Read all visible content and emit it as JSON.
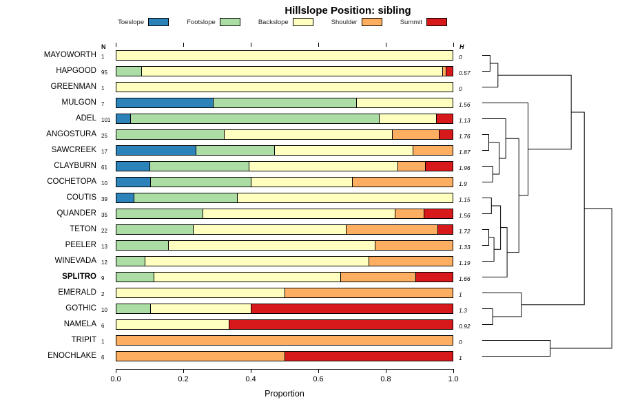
{
  "title": "Hillslope Position: sibling",
  "legend": {
    "items": [
      {
        "label": "Toeslope",
        "color": "#2b83ba"
      },
      {
        "label": "Footslope",
        "color": "#abdda4"
      },
      {
        "label": "Backslope",
        "color": "#ffffbf"
      },
      {
        "label": "Shoulder",
        "color": "#fdae61"
      },
      {
        "label": "Summit",
        "color": "#d7191c"
      }
    ]
  },
  "columns": {
    "n_header": "N",
    "h_header": "H"
  },
  "x_axis": {
    "label": "Proportion",
    "ticks": [
      "0.0",
      "0.2",
      "0.4",
      "0.6",
      "0.8",
      "1.0"
    ],
    "tick_values": [
      0,
      0.2,
      0.4,
      0.6,
      0.8,
      1.0
    ]
  },
  "chart_data": {
    "type": "bar",
    "stacked": true,
    "orientation": "horizontal",
    "xlim": [
      0,
      1
    ],
    "series_names": [
      "Toeslope",
      "Footslope",
      "Backslope",
      "Shoulder",
      "Summit"
    ],
    "colors": [
      "#2b83ba",
      "#abdda4",
      "#ffffbf",
      "#fdae61",
      "#d7191c"
    ],
    "rows": [
      {
        "label": "MAYOWORTH",
        "n": 1,
        "h": "0",
        "values": [
          0,
          0,
          1,
          0,
          0
        ]
      },
      {
        "label": "HAPGOOD",
        "n": 95,
        "h": "0.57",
        "values": [
          0,
          0.074,
          0.895,
          0.01,
          0.021
        ]
      },
      {
        "label": "GREENMAN",
        "n": 1,
        "h": "0",
        "values": [
          0,
          0,
          1,
          0,
          0
        ]
      },
      {
        "label": "MULGON",
        "n": 7,
        "h": "1.56",
        "values": [
          0.286,
          0.428,
          0.286,
          0,
          0
        ]
      },
      {
        "label": "ADEL",
        "n": 101,
        "h": "1.13",
        "values": [
          0.04,
          0.74,
          0.17,
          0,
          0.05
        ]
      },
      {
        "label": "ANGOSTURA",
        "n": 25,
        "h": "1.76",
        "values": [
          0,
          0.32,
          0.5,
          0.14,
          0.04
        ]
      },
      {
        "label": "SAWCREEK",
        "n": 17,
        "h": "1.87",
        "values": [
          0.235,
          0.235,
          0.412,
          0.118,
          0
        ]
      },
      {
        "label": "CLAYBURN",
        "n": 61,
        "h": "1.96",
        "values": [
          0.098,
          0.295,
          0.443,
          0.082,
          0.082
        ]
      },
      {
        "label": "COCHETOPA",
        "n": 10,
        "h": "1.9",
        "values": [
          0.1,
          0.3,
          0.3,
          0.3,
          0
        ]
      },
      {
        "label": "COUTIS",
        "n": 39,
        "h": "1.15",
        "values": [
          0.051,
          0.308,
          0.641,
          0,
          0
        ]
      },
      {
        "label": "QUANDER",
        "n": 35,
        "h": "1.56",
        "values": [
          0,
          0.257,
          0.571,
          0.086,
          0.086
        ]
      },
      {
        "label": "TETON",
        "n": 22,
        "h": "1.72",
        "values": [
          0,
          0.227,
          0.455,
          0.273,
          0.045
        ]
      },
      {
        "label": "PEELER",
        "n": 13,
        "h": "1.33",
        "values": [
          0,
          0.154,
          0.615,
          0.231,
          0
        ]
      },
      {
        "label": "WINEVADA",
        "n": 12,
        "h": "1.19",
        "values": [
          0,
          0.083,
          0.667,
          0.25,
          0
        ]
      },
      {
        "label": "SPLITRO",
        "n": 9,
        "h": "1.66",
        "bold": true,
        "values": [
          0,
          0.111,
          0.556,
          0.222,
          0.111
        ]
      },
      {
        "label": "EMERALD",
        "n": 2,
        "h": "1",
        "values": [
          0,
          0,
          0.5,
          0.5,
          0
        ]
      },
      {
        "label": "GOTHIC",
        "n": 10,
        "h": "1.3",
        "values": [
          0,
          0.1,
          0.3,
          0,
          0.6
        ]
      },
      {
        "label": "NAMELA",
        "n": 6,
        "h": "0.92",
        "values": [
          0,
          0,
          0.333,
          0,
          0.667
        ]
      },
      {
        "label": "TRIPIT",
        "n": 1,
        "h": "0",
        "values": [
          0,
          0,
          0,
          1,
          0
        ]
      },
      {
        "label": "ENOCHLAKE",
        "n": 6,
        "h": "1",
        "values": [
          0,
          0,
          0,
          0.5,
          0.5
        ]
      }
    ]
  },
  "dendrogram": {
    "merges": [
      {
        "a": "L0",
        "b": "L1",
        "h": 0.06
      },
      {
        "a": "M1",
        "b": "L2",
        "h": 0.12
      },
      {
        "a": "L5",
        "b": "L6",
        "h": 0.05
      },
      {
        "a": "L7",
        "b": "L8",
        "h": 0.08
      },
      {
        "a": "M3",
        "b": "M4",
        "h": 0.13
      },
      {
        "a": "L4",
        "b": "M5",
        "h": 0.18
      },
      {
        "a": "L11",
        "b": "L12",
        "h": 0.05
      },
      {
        "a": "M7",
        "b": "L13",
        "h": 0.09
      },
      {
        "a": "L9",
        "b": "L10",
        "h": 0.07
      },
      {
        "a": "M9",
        "b": "M8",
        "h": 0.14
      },
      {
        "a": "M10",
        "b": "L14",
        "h": 0.19
      },
      {
        "a": "M6",
        "b": "M11",
        "h": 0.28
      },
      {
        "a": "L3",
        "b": "M12",
        "h": 0.35
      },
      {
        "a": "M2",
        "b": "M13",
        "h": 0.68
      },
      {
        "a": "L16",
        "b": "L17",
        "h": 0.08
      },
      {
        "a": "L15",
        "b": "M15",
        "h": 0.3
      },
      {
        "a": "M14",
        "b": "M16",
        "h": 0.78
      },
      {
        "a": "L18",
        "b": "L19",
        "h": 0.52
      },
      {
        "a": "M17",
        "b": "M18",
        "h": 0.99
      }
    ]
  }
}
